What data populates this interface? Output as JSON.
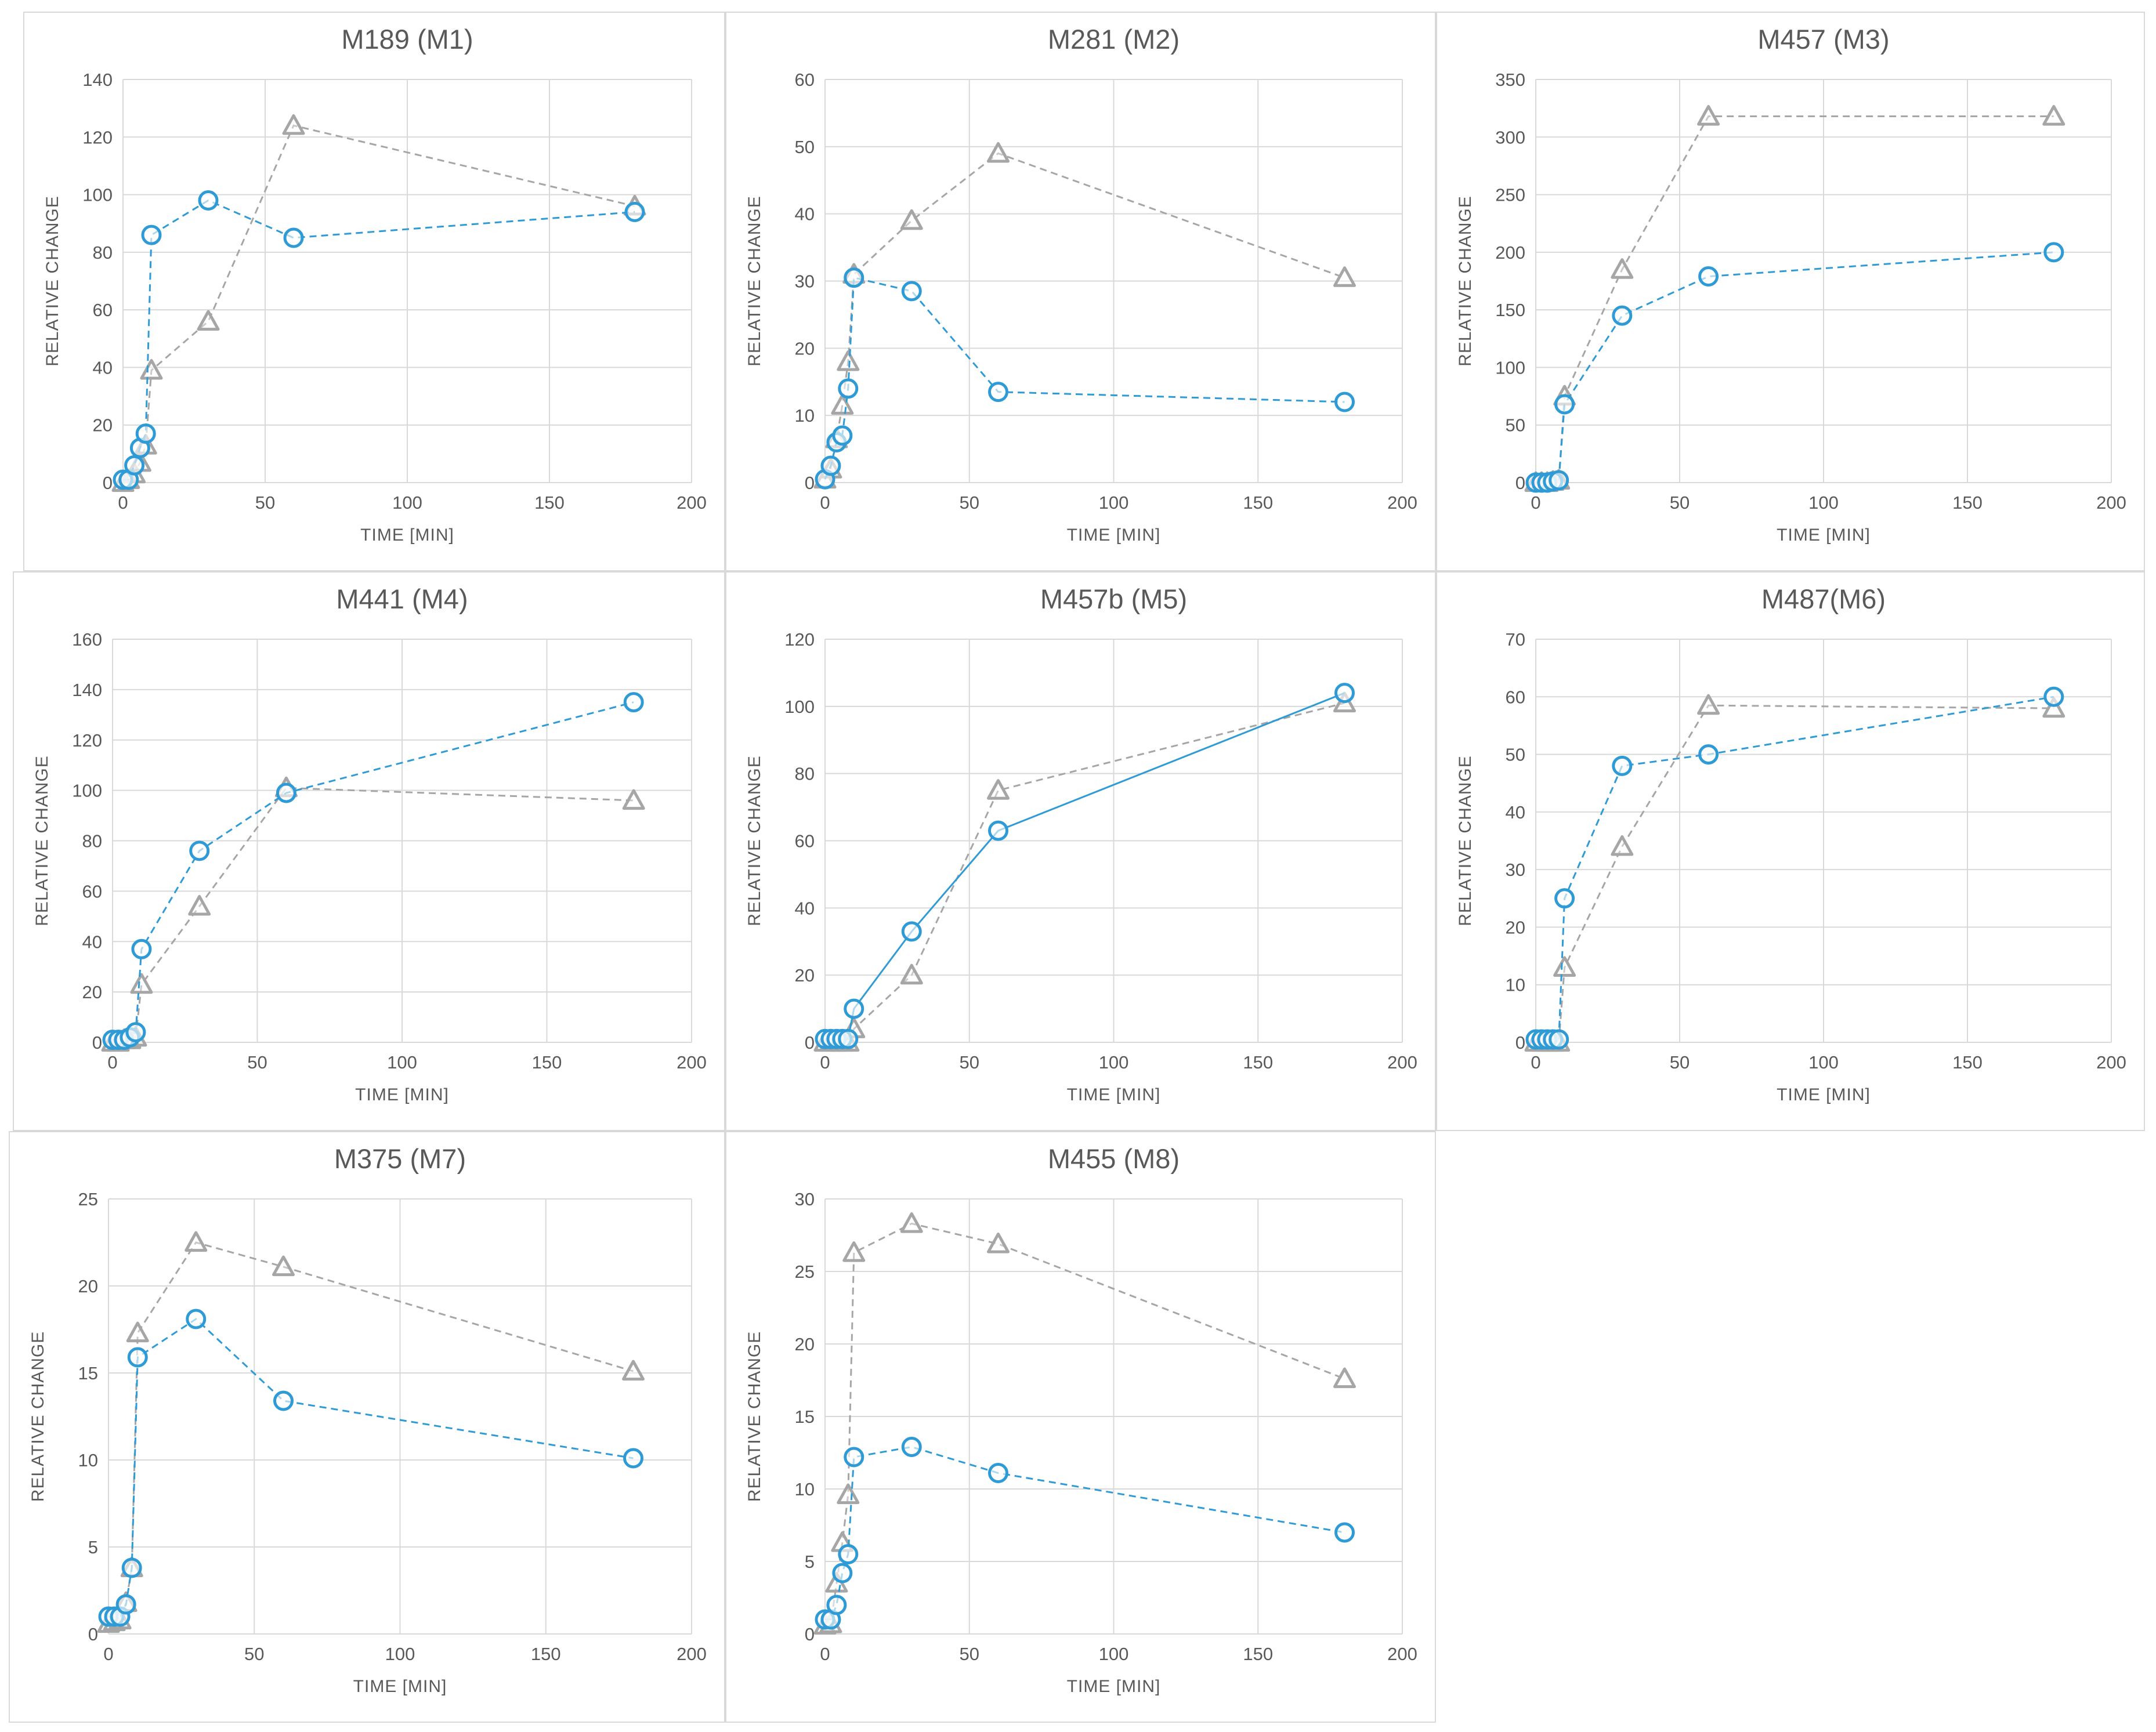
{
  "chart_data": [
    {
      "type": "line",
      "title": "M189 (M1)",
      "xlabel": "TIME [MIN]",
      "ylabel": "RELATIVE CHANGE",
      "xlim": [
        0,
        200
      ],
      "xticks": [
        0,
        50,
        100,
        150,
        200
      ],
      "ylim": [
        0,
        140
      ],
      "yticks": [
        0,
        20,
        40,
        60,
        80,
        100,
        120,
        140
      ],
      "series": [
        {
          "name": "circle",
          "color": "#2e9bd6",
          "marker": "circle",
          "line": "dashed",
          "x": [
            0,
            2,
            4,
            6,
            8,
            10,
            30,
            60,
            180
          ],
          "y": [
            1,
            1,
            6,
            12,
            17,
            86,
            98,
            85,
            94
          ]
        },
        {
          "name": "triangle",
          "color": "#a6a6a6",
          "marker": "triangle",
          "line": "dashed",
          "x": [
            0,
            2,
            4,
            6,
            8,
            10,
            30,
            60,
            180
          ],
          "y": [
            0,
            1,
            3,
            7,
            13,
            39,
            56,
            124,
            96
          ]
        }
      ]
    },
    {
      "type": "line",
      "title": "M281 (M2)",
      "xlabel": "TIME [MIN]",
      "ylabel": "RELATIVE CHANGE",
      "xlim": [
        0,
        200
      ],
      "xticks": [
        0,
        50,
        100,
        150,
        200
      ],
      "ylim": [
        0,
        60
      ],
      "yticks": [
        0,
        10,
        20,
        30,
        40,
        50,
        60
      ],
      "series": [
        {
          "name": "circle",
          "color": "#2e9bd6",
          "marker": "circle",
          "line": "dashed",
          "x": [
            0,
            2,
            4,
            6,
            8,
            10,
            30,
            60,
            180
          ],
          "y": [
            0.5,
            2.5,
            6,
            7,
            14,
            30.5,
            28.5,
            13.5,
            12
          ]
        },
        {
          "name": "triangle",
          "color": "#a6a6a6",
          "marker": "triangle",
          "line": "dashed",
          "x": [
            0,
            2,
            4,
            6,
            8,
            10,
            30,
            60,
            180
          ],
          "y": [
            0.5,
            2,
            6.5,
            11.5,
            18,
            31,
            39,
            49,
            30.5
          ]
        }
      ]
    },
    {
      "type": "line",
      "title": "M457 (M3)",
      "xlabel": "TIME [MIN]",
      "ylabel": "RELATIVE CHANGE",
      "xlim": [
        0,
        200
      ],
      "xticks": [
        0,
        50,
        100,
        150,
        200
      ],
      "ylim": [
        0,
        350
      ],
      "yticks": [
        0,
        50,
        100,
        150,
        200,
        250,
        300,
        350
      ],
      "series": [
        {
          "name": "circle",
          "color": "#2e9bd6",
          "marker": "circle",
          "line": "dashed",
          "x": [
            0,
            2,
            4,
            6,
            8,
            10,
            30,
            60,
            180
          ],
          "y": [
            0,
            0,
            0,
            1,
            2,
            68,
            145,
            179,
            200
          ]
        },
        {
          "name": "triangle",
          "color": "#a6a6a6",
          "marker": "triangle",
          "line": "dashed",
          "x": [
            0,
            2,
            4,
            6,
            8,
            10,
            30,
            60,
            180
          ],
          "y": [
            0,
            0,
            0,
            1,
            2,
            75,
            185,
            318,
            318
          ]
        }
      ]
    },
    {
      "type": "line",
      "title": "M441 (M4)",
      "xlabel": "TIME [MIN]",
      "ylabel": "RELATIVE CHANGE",
      "xlim": [
        0,
        200
      ],
      "xticks": [
        0,
        50,
        100,
        150,
        200
      ],
      "ylim": [
        0,
        160
      ],
      "yticks": [
        0,
        20,
        40,
        60,
        80,
        100,
        120,
        140,
        160
      ],
      "series": [
        {
          "name": "circle",
          "color": "#2e9bd6",
          "marker": "circle",
          "line": "dashed",
          "x": [
            0,
            2,
            4,
            6,
            8,
            10,
            30,
            60,
            180
          ],
          "y": [
            1,
            1,
            1,
            2,
            4,
            37,
            76,
            99,
            135
          ]
        },
        {
          "name": "triangle",
          "color": "#a6a6a6",
          "marker": "triangle",
          "line": "dashed",
          "x": [
            0,
            2,
            4,
            6,
            8,
            10,
            30,
            60,
            180
          ],
          "y": [
            0,
            0,
            1,
            1,
            2,
            23,
            54,
            101,
            96
          ]
        }
      ]
    },
    {
      "type": "line",
      "title": "M457b (M5)",
      "xlabel": "TIME [MIN]",
      "ylabel": "RELATIVE CHANGE",
      "xlim": [
        0,
        200
      ],
      "xticks": [
        0,
        50,
        100,
        150,
        200
      ],
      "ylim": [
        0,
        120
      ],
      "yticks": [
        0,
        20,
        40,
        60,
        80,
        100,
        120
      ],
      "series": [
        {
          "name": "circle",
          "color": "#2e9bd6",
          "marker": "circle",
          "line": "solid",
          "x": [
            0,
            2,
            4,
            6,
            8,
            10,
            30,
            60,
            180
          ],
          "y": [
            1,
            1,
            1,
            1,
            1,
            10,
            33,
            63,
            104
          ]
        },
        {
          "name": "triangle",
          "color": "#a6a6a6",
          "marker": "triangle",
          "line": "dashed",
          "x": [
            0,
            2,
            4,
            6,
            8,
            10,
            30,
            60,
            180
          ],
          "y": [
            0,
            0,
            0,
            0,
            0,
            4,
            20,
            75,
            101
          ]
        }
      ]
    },
    {
      "type": "line",
      "title": "M487(M6)",
      "xlabel": "TIME [MIN]",
      "ylabel": "RELATIVE CHANGE",
      "xlim": [
        0,
        200
      ],
      "xticks": [
        0,
        50,
        100,
        150,
        200
      ],
      "ylim": [
        0,
        70
      ],
      "yticks": [
        0,
        10,
        20,
        30,
        40,
        50,
        60,
        70
      ],
      "series": [
        {
          "name": "circle",
          "color": "#2e9bd6",
          "marker": "circle",
          "line": "dashed",
          "x": [
            0,
            2,
            4,
            6,
            8,
            10,
            30,
            60,
            180
          ],
          "y": [
            0.5,
            0.5,
            0.5,
            0.5,
            0.5,
            25,
            48,
            50,
            60
          ]
        },
        {
          "name": "triangle",
          "color": "#a6a6a6",
          "marker": "triangle",
          "line": "dashed",
          "x": [
            0,
            2,
            4,
            6,
            8,
            10,
            30,
            60,
            180
          ],
          "y": [
            0,
            0,
            0,
            0,
            0,
            13,
            34,
            58.5,
            58
          ]
        }
      ]
    },
    {
      "type": "line",
      "title": "M375 (M7)",
      "xlabel": "TIME [MIN]",
      "ylabel": "RELATIVE CHANGE",
      "xlim": [
        0,
        200
      ],
      "xticks": [
        0,
        50,
        100,
        150,
        200
      ],
      "ylim": [
        0,
        25
      ],
      "yticks": [
        0,
        5,
        10,
        15,
        20,
        25
      ],
      "series": [
        {
          "name": "circle",
          "color": "#2e9bd6",
          "marker": "circle",
          "line": "dashed",
          "x": [
            0,
            2,
            4,
            6,
            8,
            10,
            30,
            60,
            180
          ],
          "y": [
            1,
            1,
            1,
            1.7,
            3.8,
            15.9,
            18.1,
            13.4,
            10.1
          ]
        },
        {
          "name": "triangle",
          "color": "#a6a6a6",
          "marker": "triangle",
          "line": "dashed",
          "x": [
            0,
            2,
            4,
            6,
            8,
            10,
            30,
            60,
            180
          ],
          "y": [
            0.6,
            0.7,
            0.8,
            1.8,
            3.8,
            17.3,
            22.5,
            21.1,
            15.1
          ]
        }
      ]
    },
    {
      "type": "line",
      "title": "M455 (M8)",
      "xlabel": "TIME [MIN]",
      "ylabel": "RELATIVE CHANGE",
      "xlim": [
        0,
        200
      ],
      "xticks": [
        0,
        50,
        100,
        150,
        200
      ],
      "ylim": [
        0,
        30
      ],
      "yticks": [
        0,
        5,
        10,
        15,
        20,
        25,
        30
      ],
      "series": [
        {
          "name": "circle",
          "color": "#2e9bd6",
          "marker": "circle",
          "line": "dashed",
          "x": [
            0,
            2,
            4,
            6,
            8,
            10,
            30,
            60,
            180
          ],
          "y": [
            1,
            1,
            2,
            4.2,
            5.5,
            12.2,
            12.9,
            11.1,
            7
          ]
        },
        {
          "name": "triangle",
          "color": "#a6a6a6",
          "marker": "triangle",
          "line": "dashed",
          "x": [
            0,
            2,
            4,
            6,
            8,
            10,
            30,
            60,
            180
          ],
          "y": [
            0.6,
            0.7,
            3.5,
            6.3,
            9.6,
            26.3,
            28.3,
            26.9,
            17.6
          ]
        }
      ]
    }
  ]
}
